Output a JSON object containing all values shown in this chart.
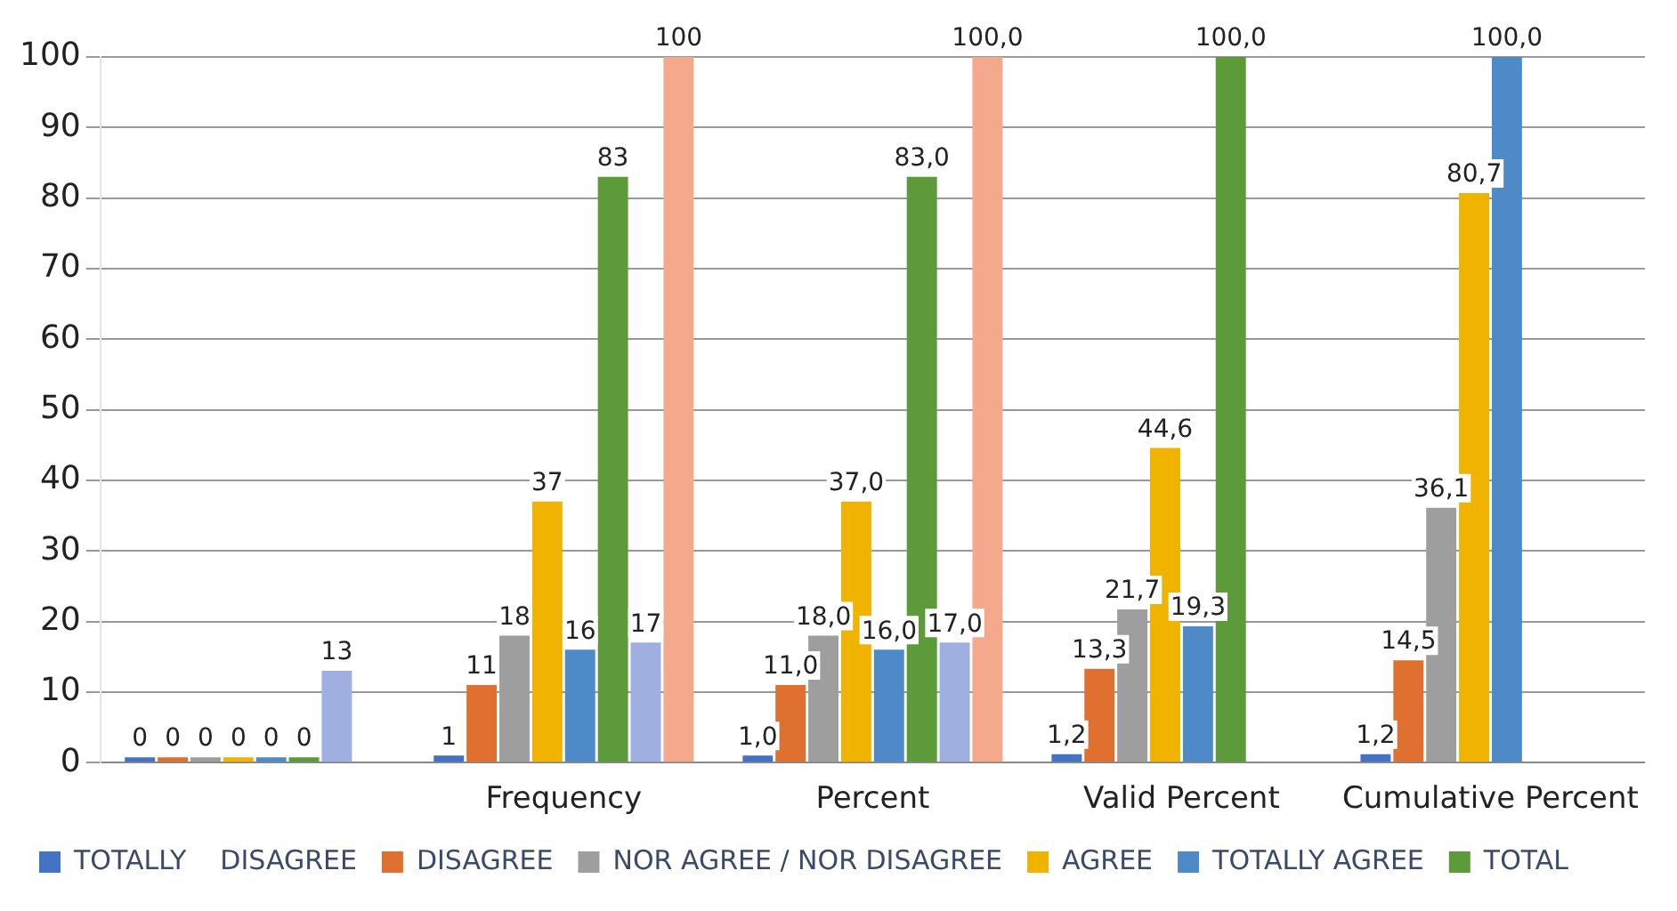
{
  "chart_data": {
    "type": "bar",
    "categories": [
      null,
      "Frequency",
      "Percent",
      "Valid Percent",
      "Cumulative Percent"
    ],
    "series": [
      {
        "name": "TOTALLY    DISAGREE",
        "color": "#4472c4",
        "values": [
          0,
          1,
          1.0,
          1.2,
          1.2
        ],
        "value_labels": [
          "0",
          "1",
          "1,0",
          "1,2",
          "1,2"
        ]
      },
      {
        "name": "DISAGREE",
        "color": "#e07030",
        "values": [
          0,
          11,
          11.0,
          13.3,
          14.5
        ],
        "value_labels": [
          "0",
          "11",
          "11,0",
          "13,3",
          "14,5"
        ]
      },
      {
        "name": "NOR AGREE / NOR DISAGREE",
        "color": "#9e9e9e",
        "values": [
          0,
          18,
          18.0,
          21.7,
          36.1
        ],
        "value_labels": [
          "0",
          "18",
          "18,0",
          "21,7",
          "36,1"
        ]
      },
      {
        "name": "AGREE",
        "color": "#f0b400",
        "values": [
          0,
          37,
          37.0,
          44.6,
          80.7
        ],
        "value_labels": [
          "0",
          "37",
          "37,0",
          "44,6",
          "80,7"
        ]
      },
      {
        "name": "TOTALLY AGREE",
        "color": "#4f8ac8",
        "values": [
          0,
          16,
          16.0,
          19.3,
          100.0
        ],
        "value_labels": [
          "0",
          "16",
          "16,0",
          "19,3",
          "100,0"
        ]
      },
      {
        "name": "TOTAL",
        "color": "#5c9a3a",
        "values": [
          0,
          83,
          83.0,
          100.0,
          null
        ],
        "value_labels": [
          "0",
          "83",
          "83,0",
          "100,0",
          null
        ]
      },
      {
        "color": "#9fb0e0",
        "values": [
          13,
          17,
          17.0,
          null,
          null
        ],
        "value_labels": [
          "13",
          "17",
          "17,0",
          null,
          null
        ]
      },
      {
        "color": "#f4a88c",
        "values": [
          null,
          100,
          100.0,
          null,
          null
        ],
        "value_labels": [
          null,
          "100",
          "100,0",
          null,
          null
        ]
      }
    ],
    "ylim": [
      0,
      100
    ],
    "yticks": [
      0,
      10,
      20,
      30,
      40,
      50,
      60,
      70,
      80,
      90,
      100
    ],
    "grid": "y",
    "legend": "bottom"
  }
}
